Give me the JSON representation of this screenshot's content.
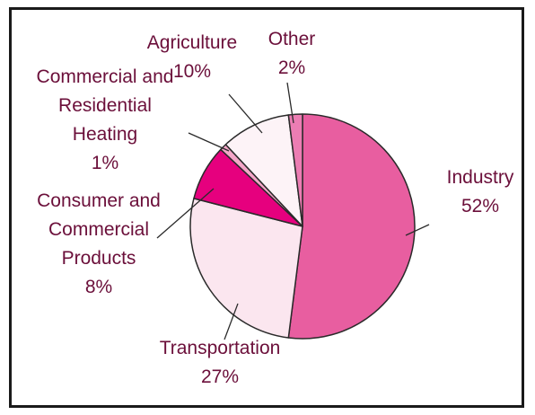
{
  "chart_data": {
    "type": "pie",
    "title": "",
    "slices": [
      {
        "lines": [
          "Industry",
          "52%"
        ],
        "value": 52,
        "color": "#e85ea0"
      },
      {
        "lines": [
          "Transportation",
          "27%"
        ],
        "value": 27,
        "color": "#fbe6ef"
      },
      {
        "lines": [
          "Consumer and",
          "Commercial",
          "Products",
          "8%"
        ],
        "value": 8,
        "color": "#e6007e"
      },
      {
        "lines": [
          "Commercial and",
          "Residential",
          "Heating",
          "1%"
        ],
        "value": 1,
        "color": "#f4a6c8"
      },
      {
        "lines": [
          "Agriculture",
          "10%"
        ],
        "value": 10,
        "color": "#fdf3f7"
      },
      {
        "lines": [
          "Other",
          "2%"
        ],
        "value": 2,
        "color": "#ec7db3"
      }
    ],
    "start": "12 o'clock",
    "direction": "clockwise"
  }
}
